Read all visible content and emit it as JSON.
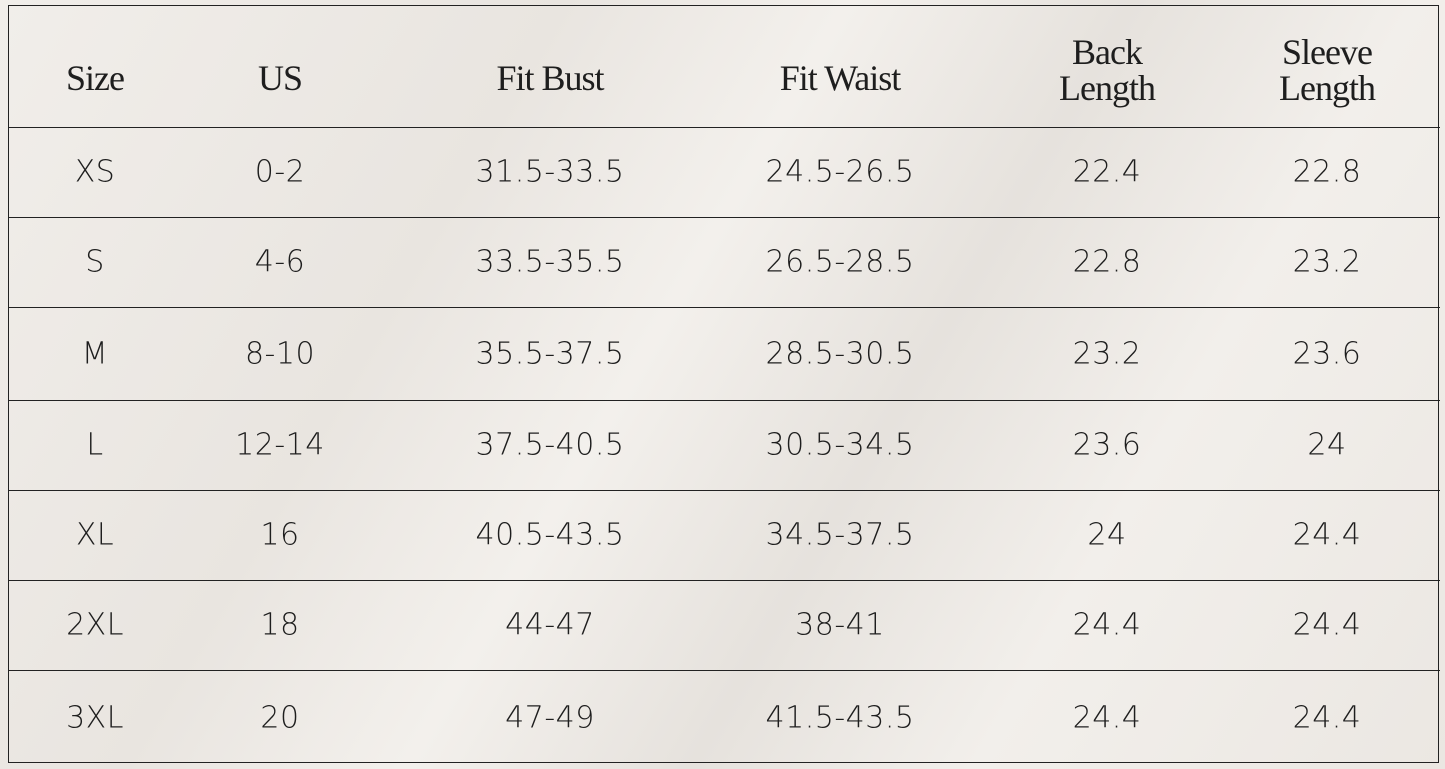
{
  "table": {
    "header": [
      "Size",
      "US",
      "Fit Bust",
      "Fit Waist",
      "Back Length",
      "Sleeve Length"
    ],
    "rows": [
      [
        "XS",
        "0-2",
        "31.5-33.5",
        "24.5-26.5",
        "22.4",
        "22.8"
      ],
      [
        "S",
        "4-6",
        "33.5-35.5",
        "26.5-28.5",
        "22.8",
        "23.2"
      ],
      [
        "M",
        "8-10",
        "35.5-37.5",
        "28.5-30.5",
        "23.2",
        "23.6"
      ],
      [
        "L",
        "12-14",
        "37.5-40.5",
        "30.5-34.5",
        "23.6",
        "24"
      ],
      [
        "XL",
        "16",
        "40.5-43.5",
        "34.5-37.5",
        "24",
        "24.4"
      ],
      [
        "2XL",
        "18",
        "44-47",
        "38-41",
        "24.4",
        "24.4"
      ],
      [
        "3XL",
        "20",
        "47-49",
        "41.5-43.5",
        "24.4",
        "24.4"
      ]
    ]
  }
}
